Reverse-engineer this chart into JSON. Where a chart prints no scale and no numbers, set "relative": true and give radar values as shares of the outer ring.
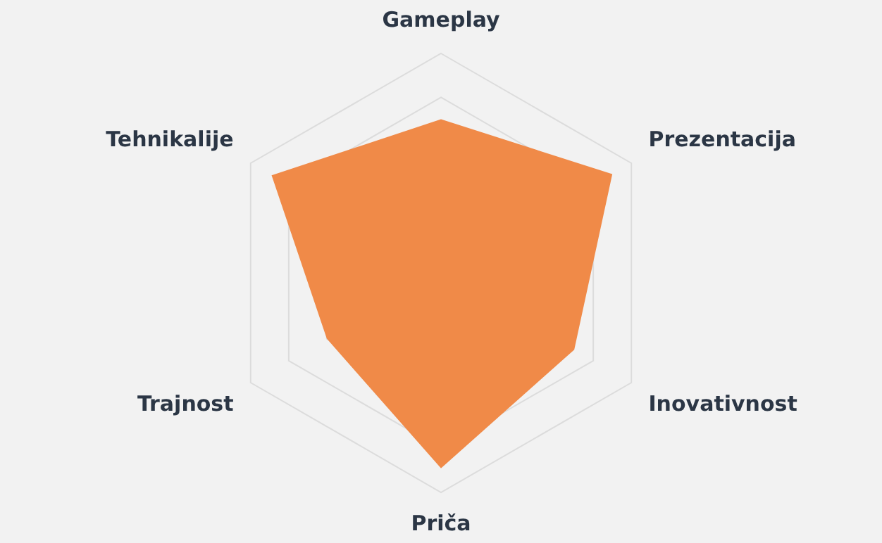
{
  "chart_data": {
    "type": "radar",
    "relative": true,
    "grid": true,
    "legend": false,
    "marker": "none",
    "categories": [
      "Gameplay",
      "Prezentacija",
      "Inovativnost",
      "Priča",
      "Trajnost",
      "Tehnikalije"
    ],
    "series": [
      {
        "color": "#f08a48",
        "values": [
          0.7,
          0.9,
          0.7,
          0.89,
          0.6,
          0.89
        ]
      }
    ]
  }
}
